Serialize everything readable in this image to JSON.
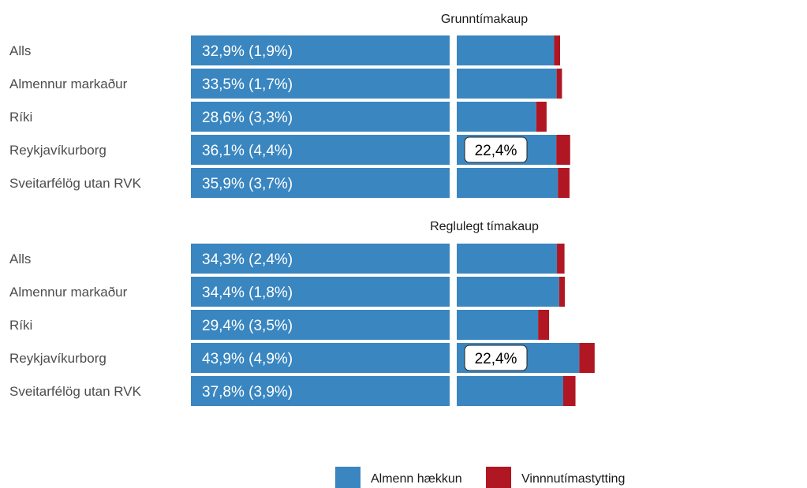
{
  "chart_data": {
    "type": "bar",
    "colors": {
      "general": "#3a86c0",
      "shorter_hours": "#b01722"
    },
    "legend": {
      "placement": "bottom",
      "entries": [
        {
          "label": "Almenn hækkun",
          "color": "#3a86c0"
        },
        {
          "label": "Vinnnutímastytting",
          "color": "#b01722"
        }
      ]
    },
    "panels": [
      {
        "title": "Grunntímakaup",
        "categories": [
          "Alls",
          "Almennur markaður",
          "Ríki",
          "Reykjavíkurborg",
          "Sveitarfélög utan RVK"
        ],
        "labels": [
          "32,9% (1,9%)",
          "33,5% (1,7%)",
          "28,6% (3,3%)",
          "36,1% (4,4%)",
          "35,9% (3,7%)"
        ],
        "series": [
          {
            "name": "Almenn hækkun",
            "values": [
              31.0,
              31.8,
              25.3,
              31.7,
              32.2
            ]
          },
          {
            "name": "Vinnnutímastytting",
            "values": [
              1.9,
              1.7,
              3.3,
              4.4,
              3.7
            ]
          }
        ],
        "reference": {
          "label": "22,4%",
          "category": "Reykjavíkurborg"
        }
      },
      {
        "title": "Reglulegt tímakaup",
        "categories": [
          "Alls",
          "Almennur markaður",
          "Ríki",
          "Reykjavíkurborg",
          "Sveitarfélög utan RVK"
        ],
        "labels": [
          "34,3% (2,4%)",
          "34,4% (1,8%)",
          "29,4% (3,5%)",
          "43,9% (4,9%)",
          "37,8% (3,9%)"
        ],
        "series": [
          {
            "name": "Almenn hækkun",
            "values": [
              31.9,
              32.6,
              25.9,
              39.0,
              33.9
            ]
          },
          {
            "name": "Vinnnutímastytting",
            "values": [
              2.4,
              1.8,
              3.5,
              4.9,
              3.9
            ]
          }
        ],
        "reference": {
          "label": "22,4%",
          "category": "Reykjavíkurborg"
        }
      }
    ]
  }
}
